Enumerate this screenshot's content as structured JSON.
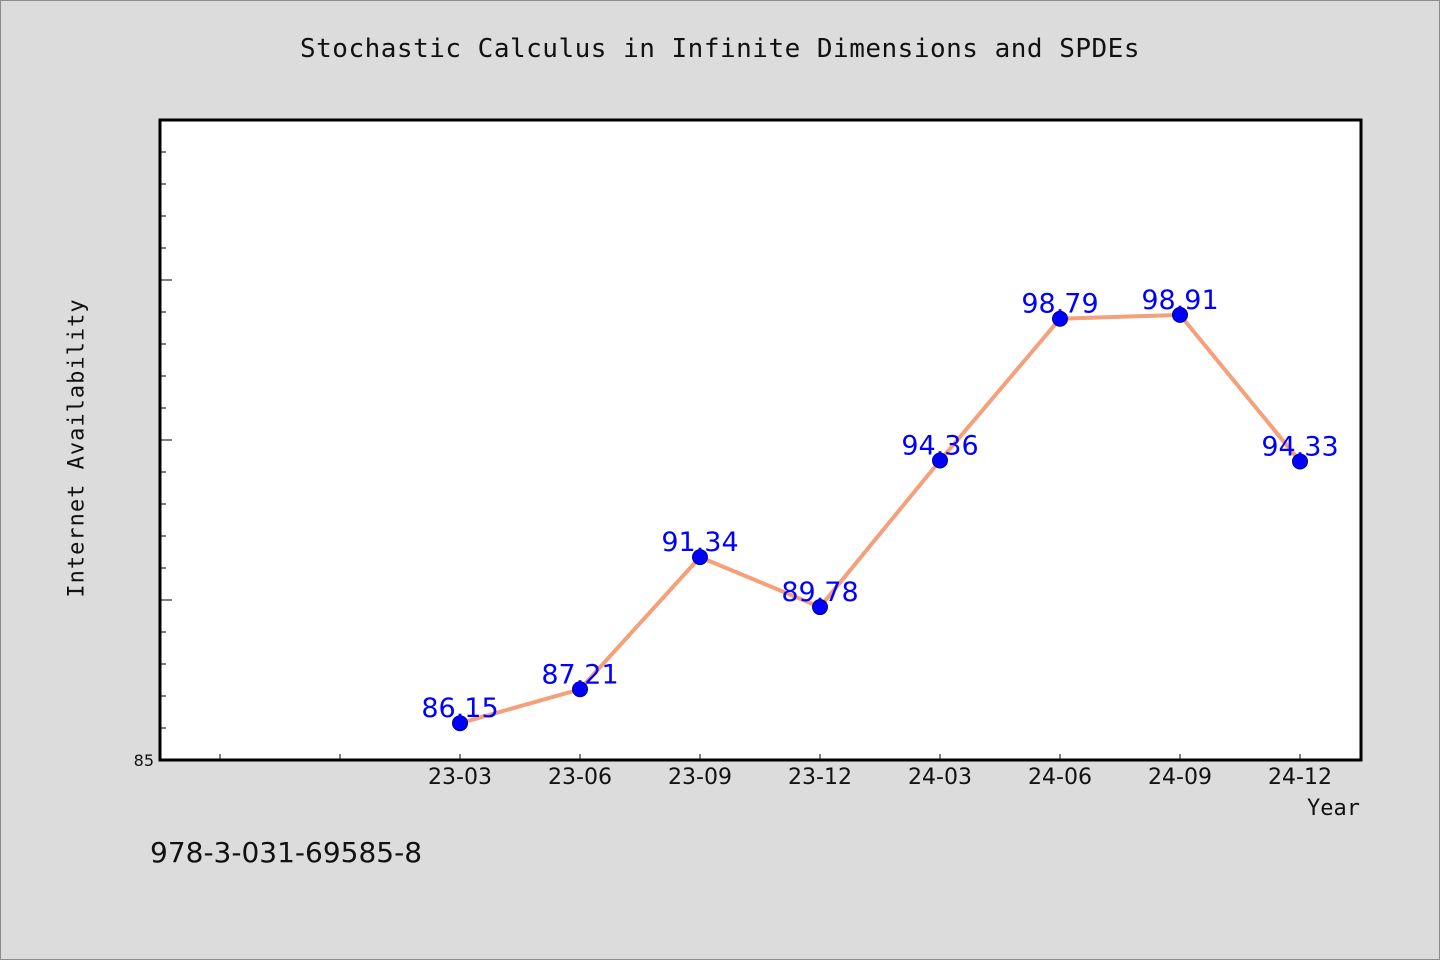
{
  "title": "Stochastic Calculus in Infinite Dimensions and SPDEs",
  "footer_text": "978-3-031-69585-8",
  "colors": {
    "line": "#f4a07a",
    "marker": "#0000ff",
    "label": "#0000ff",
    "background": "#dcdcdc",
    "plot_background": "#ffffff"
  },
  "chart_data": {
    "type": "line",
    "title": "Stochastic Calculus in Infinite Dimensions and SPDEs",
    "xlabel": "Year",
    "ylabel": "Internet Availability",
    "categories": [
      "23-03",
      "23-06",
      "23-09",
      "23-12",
      "24-03",
      "24-06",
      "24-09",
      "24-12"
    ],
    "values": [
      86.15,
      87.21,
      91.34,
      89.78,
      94.36,
      98.79,
      98.91,
      94.33
    ],
    "ylim": [
      85,
      105
    ],
    "yticks_labeled": [
      85
    ],
    "grid": false,
    "legend": "none"
  }
}
